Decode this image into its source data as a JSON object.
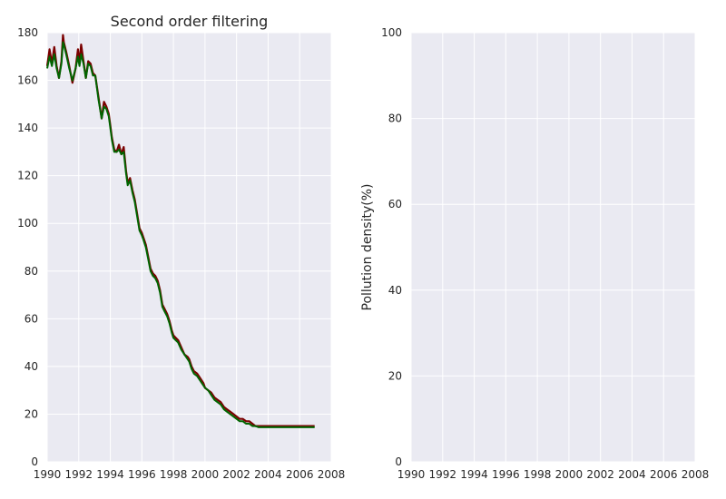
{
  "chart_data": [
    {
      "type": "line",
      "title": "Second order filtering",
      "xlabel": "",
      "ylabel": "",
      "xlim": [
        1990,
        2008
      ],
      "ylim": [
        0,
        180
      ],
      "xticks": [
        1990,
        1992,
        1994,
        1996,
        1998,
        2000,
        2002,
        2004,
        2006,
        2008
      ],
      "yticks": [
        0,
        20,
        40,
        60,
        80,
        100,
        120,
        140,
        160,
        180
      ],
      "grid": true,
      "series": [
        {
          "color": "#7a0000",
          "x": [
            1990.0,
            1990.15,
            1990.3,
            1990.45,
            1990.6,
            1990.75,
            1990.9,
            1991.0,
            1991.05,
            1991.2,
            1991.4,
            1991.6,
            1991.8,
            1991.95,
            1992.05,
            1992.15,
            1992.3,
            1992.45,
            1992.6,
            1992.75,
            1992.9,
            1993.05,
            1993.25,
            1993.45,
            1993.6,
            1993.75,
            1993.9,
            1994.0,
            1994.1,
            1994.25,
            1994.4,
            1994.55,
            1994.7,
            1994.85,
            1995.0,
            1995.1,
            1995.25,
            1995.4,
            1995.55,
            1995.7,
            1995.85,
            1996.0,
            1996.1,
            1996.25,
            1996.4,
            1996.55,
            1996.7,
            1996.85,
            1997.0,
            1997.15,
            1997.3,
            1997.45,
            1997.6,
            1997.75,
            1997.9,
            1998.0,
            1998.15,
            1998.3,
            1998.5,
            1998.7,
            1998.9,
            1999.0,
            1999.15,
            1999.3,
            1999.5,
            1999.7,
            1999.9,
            2000.0,
            2000.2,
            2000.4,
            2000.6,
            2000.8,
            2001.0,
            2001.2,
            2001.4,
            2001.6,
            2001.8,
            2002.0,
            2002.2,
            2002.4,
            2002.6,
            2002.8,
            2003.0,
            2003.2,
            2003.4,
            2003.6,
            2003.8,
            2004.0,
            2004.2,
            2004.4,
            2004.6,
            2004.8,
            2005.0,
            2005.2,
            2005.4,
            2005.6,
            2005.8,
            2006.0,
            2006.2,
            2006.4,
            2006.6,
            2006.8,
            2006.95
          ],
          "y": [
            166,
            173,
            167,
            174,
            166,
            161,
            168,
            179,
            176,
            172,
            166,
            159,
            165,
            173,
            167,
            175,
            168,
            161,
            168,
            167,
            163,
            162,
            153,
            144,
            151,
            149,
            146,
            141,
            136,
            131,
            130,
            133,
            129,
            132,
            122,
            117,
            119,
            114,
            110,
            104,
            98,
            96,
            94,
            91,
            86,
            81,
            79,
            78,
            76,
            72,
            66,
            64,
            62,
            59,
            55,
            53,
            52,
            51,
            48,
            45,
            44,
            43,
            40,
            38,
            37,
            35,
            33,
            31,
            30,
            29,
            27,
            26,
            25,
            23,
            22,
            21,
            20,
            19,
            18,
            18,
            17,
            17,
            16,
            15,
            15,
            15,
            15,
            15,
            15,
            15,
            15,
            15,
            15,
            15,
            15,
            15,
            15,
            15,
            15,
            15,
            15,
            15,
            15
          ]
        },
        {
          "color": "#006400",
          "x": [
            1990.0,
            1990.15,
            1990.3,
            1990.45,
            1990.6,
            1990.75,
            1990.9,
            1991.0,
            1991.05,
            1991.2,
            1991.4,
            1991.6,
            1991.8,
            1991.95,
            1992.05,
            1992.15,
            1992.3,
            1992.45,
            1992.6,
            1992.75,
            1992.9,
            1993.05,
            1993.25,
            1993.45,
            1993.6,
            1993.75,
            1993.9,
            1994.0,
            1994.1,
            1994.25,
            1994.4,
            1994.55,
            1994.7,
            1994.85,
            1995.0,
            1995.1,
            1995.25,
            1995.4,
            1995.55,
            1995.7,
            1995.85,
            1996.0,
            1996.1,
            1996.25,
            1996.4,
            1996.55,
            1996.7,
            1996.85,
            1997.0,
            1997.15,
            1997.3,
            1997.45,
            1997.6,
            1997.75,
            1997.9,
            1998.0,
            1998.15,
            1998.3,
            1998.5,
            1998.7,
            1998.9,
            1999.0,
            1999.15,
            1999.3,
            1999.5,
            1999.7,
            1999.9,
            2000.0,
            2000.2,
            2000.4,
            2000.6,
            2000.8,
            2001.0,
            2001.2,
            2001.4,
            2001.6,
            2001.8,
            2002.0,
            2002.2,
            2002.4,
            2002.6,
            2002.8,
            2003.0,
            2003.2,
            2003.4,
            2003.6,
            2003.8,
            2004.0,
            2004.2,
            2004.4,
            2004.6,
            2004.8,
            2005.0,
            2005.2,
            2005.4,
            2005.6,
            2005.8,
            2006.0,
            2006.2,
            2006.4,
            2006.6,
            2006.8,
            2006.95
          ],
          "y": [
            165,
            170,
            166,
            171,
            165,
            161,
            167,
            176,
            175,
            171,
            165,
            160,
            165,
            170,
            166,
            171,
            167,
            161,
            167,
            166,
            162,
            162,
            152,
            144,
            149,
            148,
            145,
            140,
            135,
            130,
            130,
            131,
            129,
            130,
            121,
            116,
            118,
            113,
            109,
            103,
            97,
            95,
            93,
            90,
            85,
            80,
            78,
            77,
            75,
            71,
            65,
            63,
            61,
            58,
            54,
            52,
            51,
            50,
            47,
            45,
            43,
            42,
            39,
            37,
            36,
            34,
            32,
            31,
            30,
            28,
            26,
            25,
            24,
            22,
            21,
            20,
            19,
            18,
            17,
            17,
            16,
            16,
            15,
            15,
            14.5,
            14.5,
            14.5,
            14.5,
            14.5,
            14.5,
            14.5,
            14.5,
            14.5,
            14.5,
            14.5,
            14.5,
            14.5,
            14.5,
            14.5,
            14.5,
            14.5,
            14.5,
            14.5
          ]
        }
      ]
    },
    {
      "type": "line",
      "title": "",
      "xlabel": "",
      "ylabel": "Pollution density(%)",
      "xlim": [
        1990,
        2008
      ],
      "ylim": [
        0,
        100
      ],
      "xticks": [
        1990,
        1992,
        1994,
        1996,
        1998,
        2000,
        2002,
        2004,
        2006,
        2008
      ],
      "yticks": [
        0,
        20,
        40,
        60,
        80,
        100
      ],
      "grid": true,
      "series": []
    }
  ],
  "colors": {
    "plot_background": "#eaeaf2",
    "grid": "#ffffff"
  }
}
